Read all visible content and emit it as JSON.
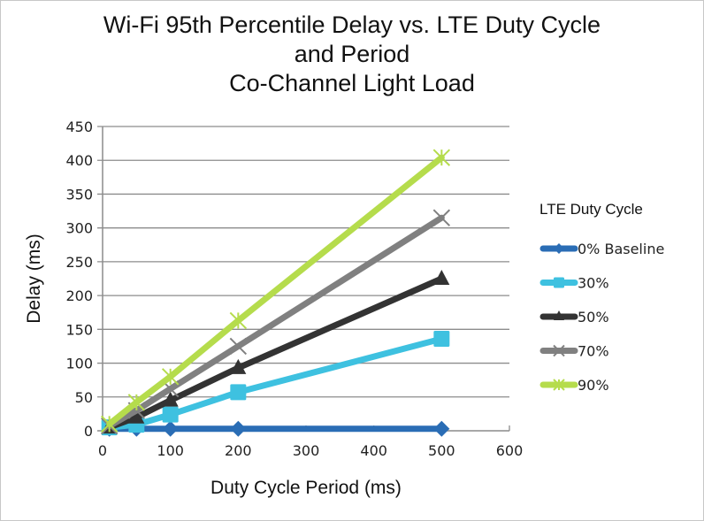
{
  "chart_data": {
    "type": "line",
    "title_lines": [
      "Wi-Fi 95th Percentile Delay vs. LTE Duty Cycle",
      "and Period",
      "Co-Channel Light Load"
    ],
    "xlabel": "Duty Cycle Period (ms)",
    "ylabel": "Delay (ms)",
    "xlim": [
      0,
      600
    ],
    "ylim": [
      0,
      450
    ],
    "xticks": [
      0,
      100,
      200,
      300,
      400,
      500,
      600
    ],
    "yticks": [
      0,
      50,
      100,
      150,
      200,
      250,
      300,
      350,
      400,
      450
    ],
    "grid": "horizontal",
    "legend": {
      "title": "LTE Duty Cycle",
      "position": "right"
    },
    "x": [
      10,
      50,
      100,
      200,
      500
    ],
    "series": [
      {
        "name": "0% Baseline",
        "marker": "diamond",
        "color": "#2a6db5",
        "values": [
          3,
          3,
          3,
          3,
          3
        ]
      },
      {
        "name": "30%",
        "marker": "square",
        "color": "#3ec1e0",
        "values": [
          5,
          9,
          24,
          57,
          136
        ]
      },
      {
        "name": "50%",
        "marker": "triangle",
        "color": "#333333",
        "values": [
          5,
          20,
          45,
          93,
          225
        ]
      },
      {
        "name": "70%",
        "marker": "x",
        "color": "#808080",
        "values": [
          7,
          30,
          62,
          125,
          315
        ]
      },
      {
        "name": "90%",
        "marker": "star",
        "color": "#b5dc4c",
        "values": [
          10,
          42,
          80,
          163,
          404
        ]
      }
    ]
  }
}
